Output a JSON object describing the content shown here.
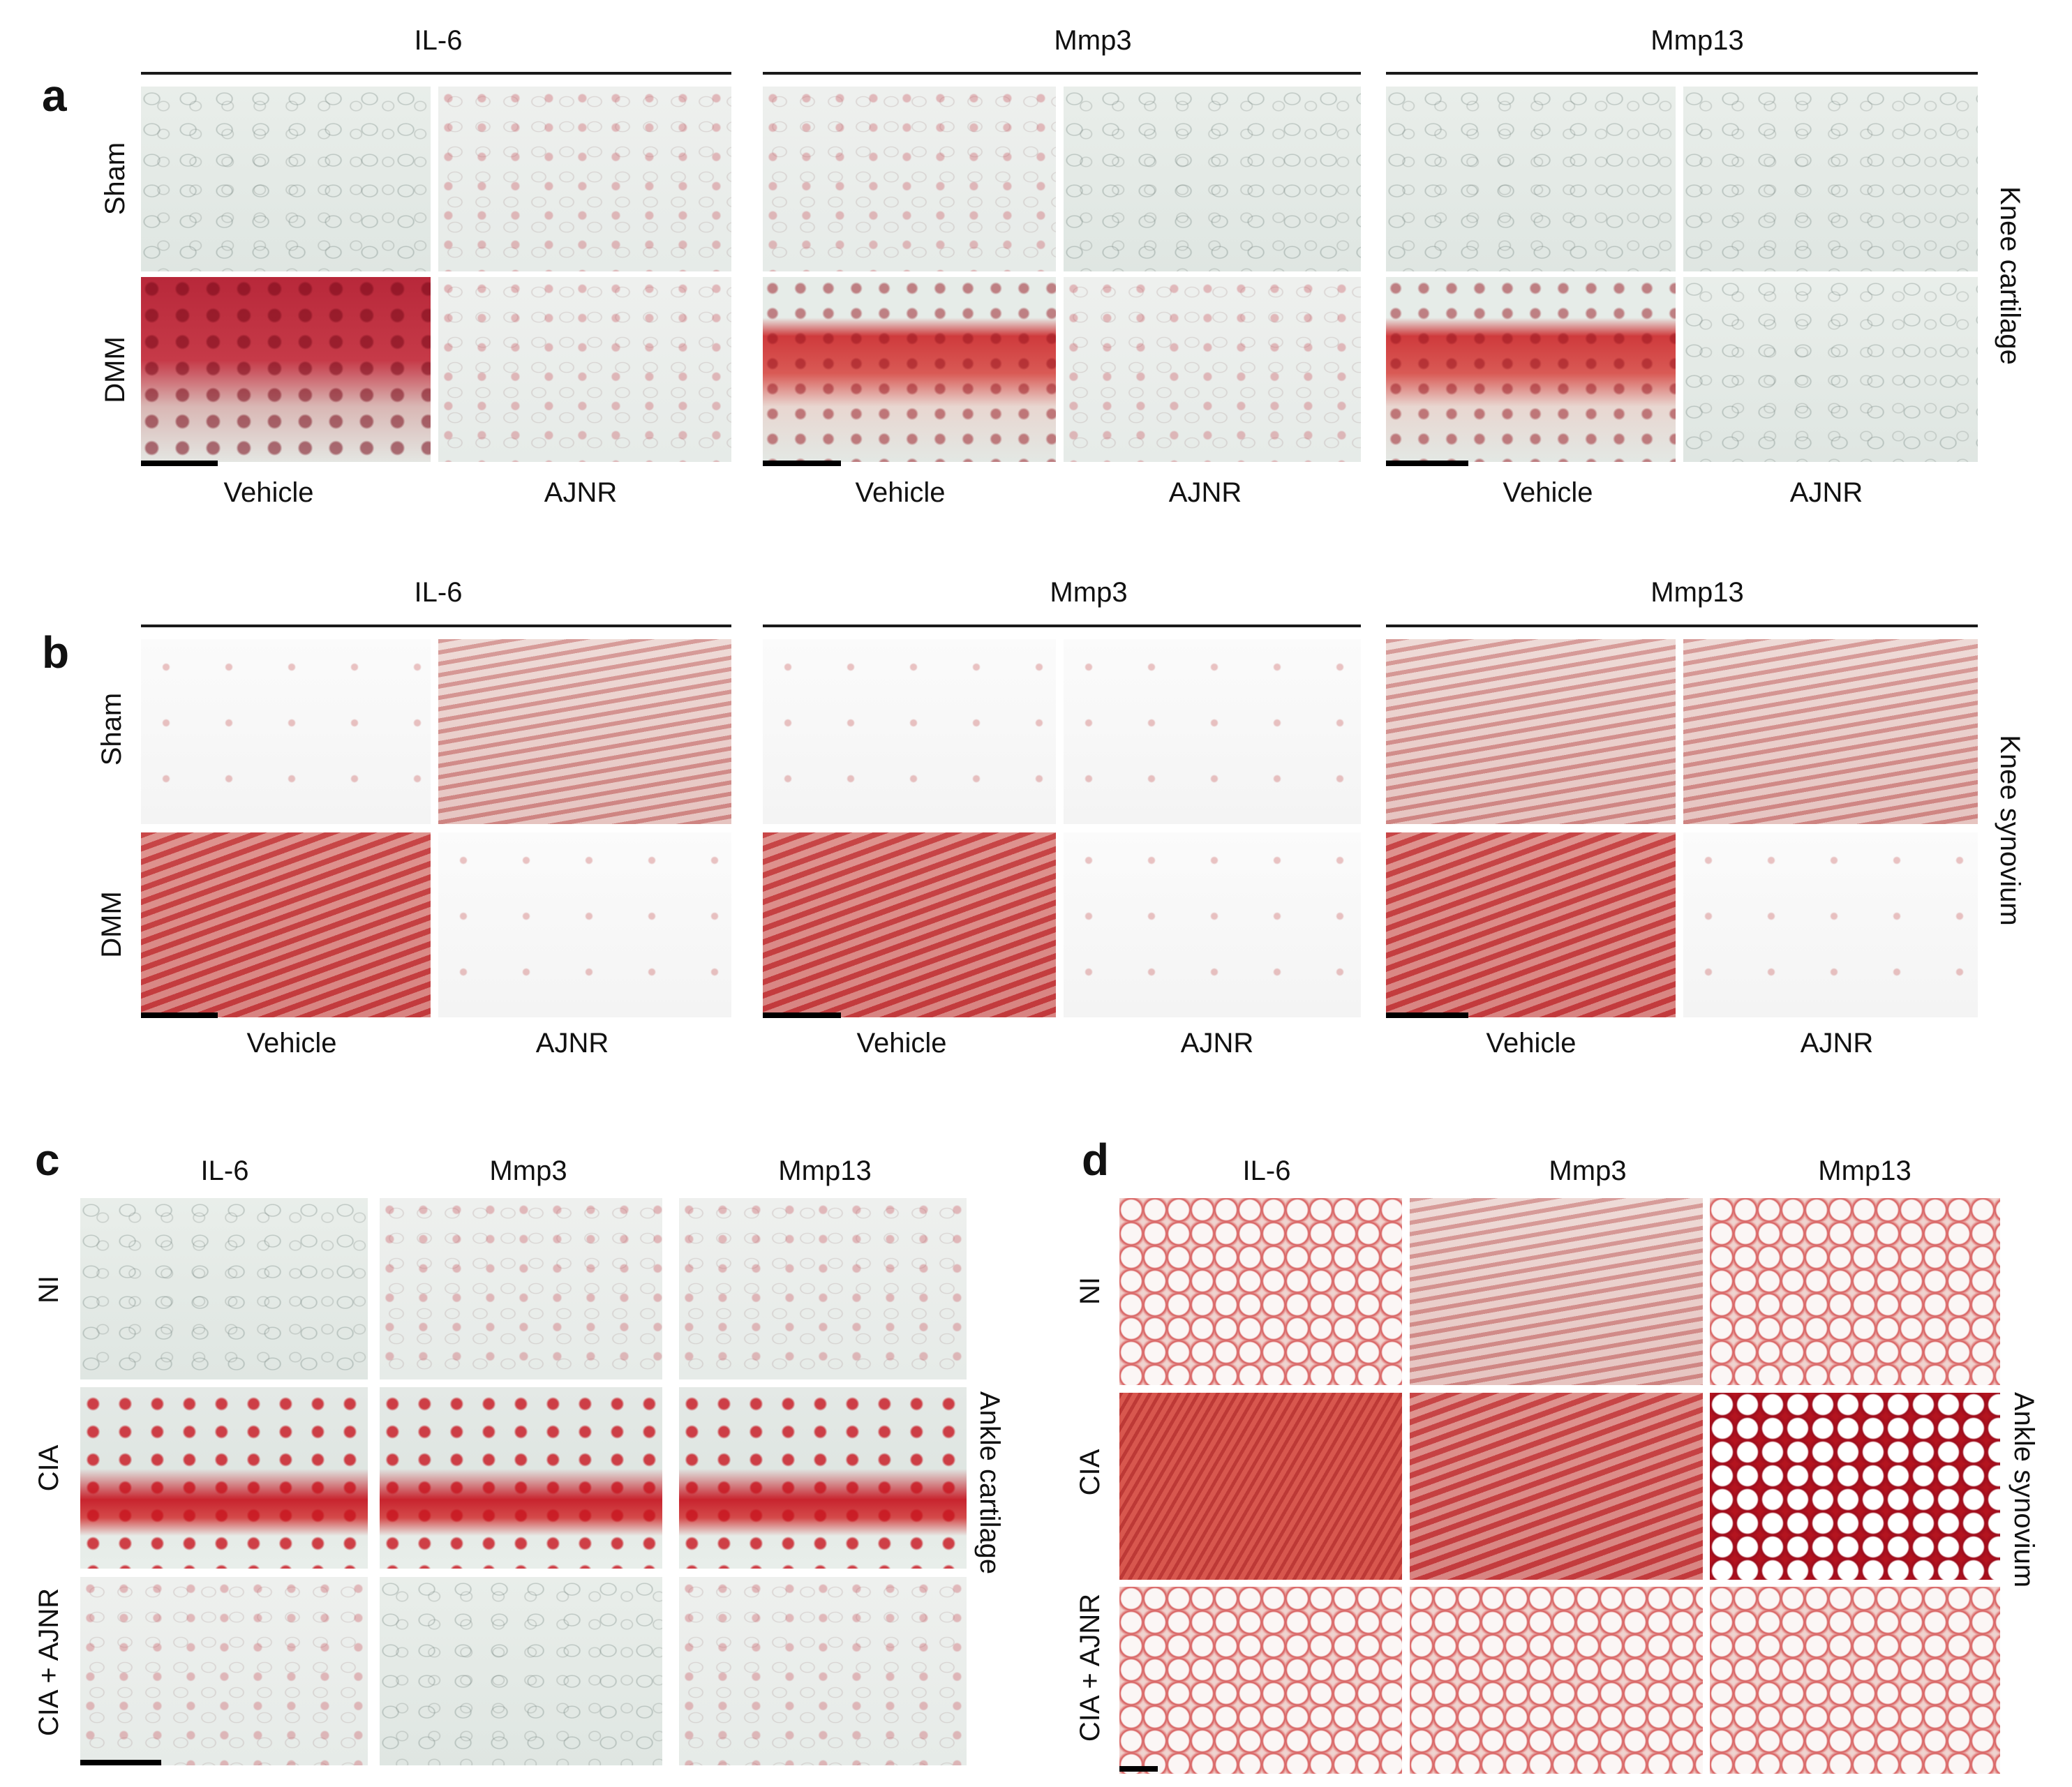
{
  "panels": {
    "a": {
      "letter": "a",
      "markers": [
        "IL-6",
        "Mmp3",
        "Mmp13"
      ],
      "rows": [
        "Sham",
        "DMM"
      ],
      "columns": [
        "Vehicle",
        "AJNR"
      ],
      "side_label": "Knee cartilage"
    },
    "b": {
      "letter": "b",
      "markers": [
        "IL-6",
        "Mmp3",
        "Mmp13"
      ],
      "rows": [
        "Sham",
        "DMM"
      ],
      "columns": [
        "Vehicle",
        "AJNR"
      ],
      "side_label": "Knee synovium"
    },
    "c": {
      "letter": "c",
      "markers": [
        "IL-6",
        "Mmp3",
        "Mmp13"
      ],
      "rows": [
        "NI",
        "CIA",
        "CIA + AJNR"
      ],
      "side_label": "Ankle cartilage"
    },
    "d": {
      "letter": "d",
      "markers": [
        "IL-6",
        "Mmp3",
        "Mmp13"
      ],
      "rows": [
        "NI",
        "CIA",
        "CIA + AJNR"
      ],
      "side_label": "Ankle synovium"
    }
  }
}
